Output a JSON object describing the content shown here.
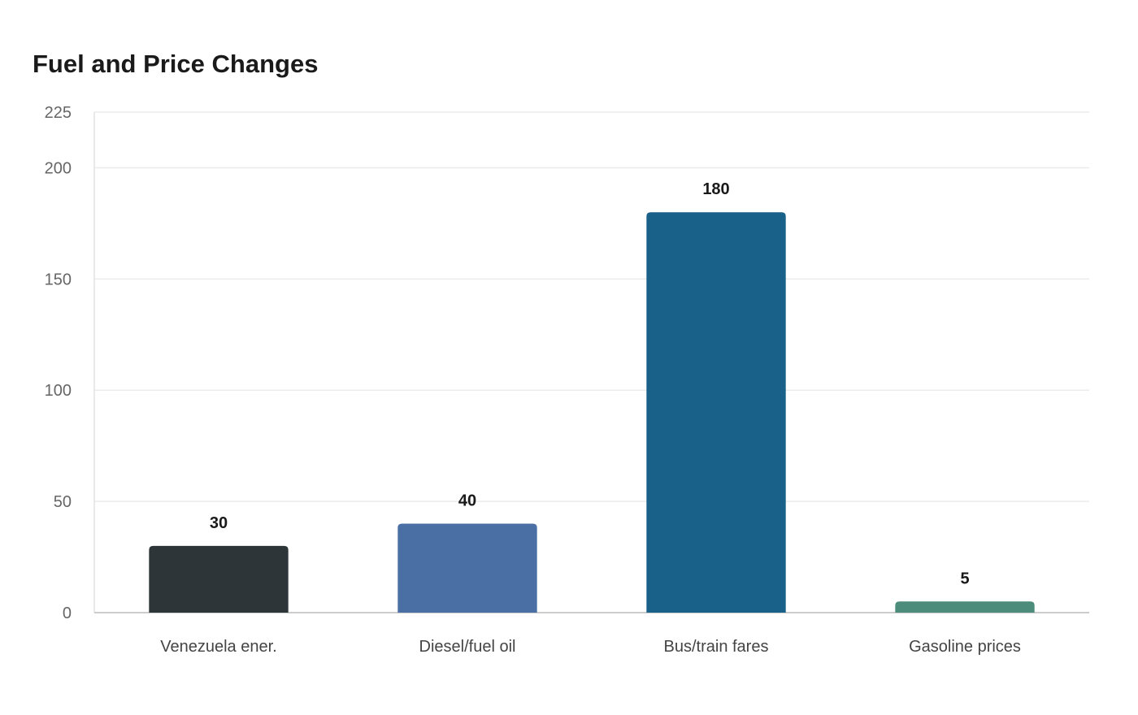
{
  "chart_data": {
    "type": "bar",
    "title": "Fuel and Price Changes",
    "xlabel": "",
    "ylabel": "",
    "categories": [
      "Venezuela ener.",
      "Diesel/fuel oil",
      "Bus/train fares",
      "Gasoline prices"
    ],
    "values": [
      30,
      40,
      180,
      5
    ],
    "colors": [
      "#2d3538",
      "#4a6fa5",
      "#196189",
      "#4c8c7a"
    ],
    "yticks": [
      0,
      50,
      100,
      150,
      200,
      225
    ],
    "ylim": [
      0,
      225
    ],
    "grid": true,
    "legend": "none"
  }
}
